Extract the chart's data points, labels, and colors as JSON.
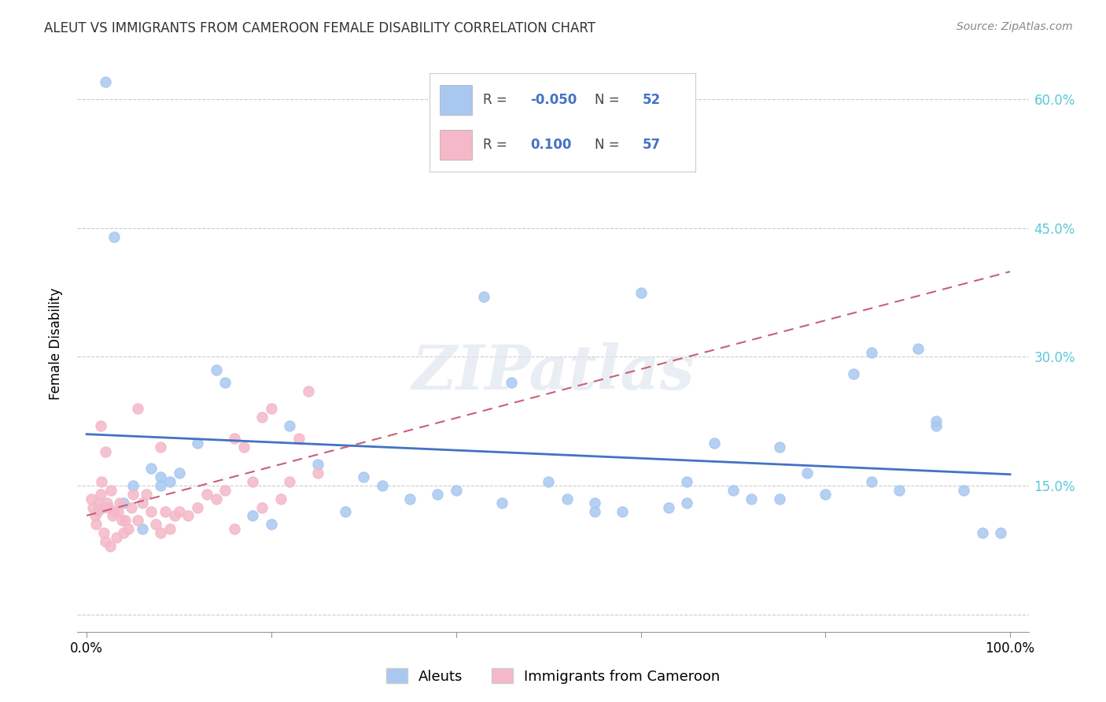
{
  "title": "ALEUT VS IMMIGRANTS FROM CAMEROON FEMALE DISABILITY CORRELATION CHART",
  "source": "Source: ZipAtlas.com",
  "ylabel": "Female Disability",
  "aleut_R": -0.05,
  "aleut_N": 52,
  "cameroon_R": 0.1,
  "cameroon_N": 57,
  "aleut_color": "#a8c8f0",
  "aleut_line_color": "#4472c4",
  "cameroon_color": "#f4b8c8",
  "cameroon_line_color": "#c8607a",
  "background_color": "#ffffff",
  "watermark": "ZIPatlas",
  "right_tick_color": "#5bc8d8",
  "aleut_scatter_x": [
    0.02,
    0.03,
    0.05,
    0.07,
    0.08,
    0.09,
    0.1,
    0.12,
    0.14,
    0.15,
    0.18,
    0.2,
    0.22,
    0.25,
    0.28,
    0.3,
    0.32,
    0.35,
    0.38,
    0.4,
    0.43,
    0.46,
    0.5,
    0.52,
    0.55,
    0.58,
    0.6,
    0.63,
    0.65,
    0.68,
    0.7,
    0.72,
    0.75,
    0.78,
    0.8,
    0.83,
    0.85,
    0.88,
    0.9,
    0.92,
    0.95,
    0.97,
    0.99,
    0.04,
    0.06,
    0.08,
    0.45,
    0.55,
    0.65,
    0.75,
    0.85,
    0.92
  ],
  "aleut_scatter_y": [
    0.62,
    0.44,
    0.15,
    0.17,
    0.16,
    0.155,
    0.165,
    0.2,
    0.285,
    0.27,
    0.115,
    0.105,
    0.22,
    0.175,
    0.12,
    0.16,
    0.15,
    0.135,
    0.14,
    0.145,
    0.37,
    0.27,
    0.155,
    0.135,
    0.13,
    0.12,
    0.375,
    0.125,
    0.13,
    0.2,
    0.145,
    0.135,
    0.135,
    0.165,
    0.14,
    0.28,
    0.155,
    0.145,
    0.31,
    0.225,
    0.145,
    0.095,
    0.095,
    0.13,
    0.1,
    0.15,
    0.13,
    0.12,
    0.155,
    0.195,
    0.305,
    0.22
  ],
  "cameroon_scatter_x": [
    0.005,
    0.007,
    0.009,
    0.01,
    0.012,
    0.013,
    0.015,
    0.016,
    0.018,
    0.019,
    0.02,
    0.022,
    0.024,
    0.026,
    0.028,
    0.03,
    0.032,
    0.034,
    0.036,
    0.038,
    0.04,
    0.042,
    0.045,
    0.048,
    0.05,
    0.055,
    0.06,
    0.065,
    0.07,
    0.075,
    0.08,
    0.085,
    0.09,
    0.095,
    0.1,
    0.11,
    0.12,
    0.13,
    0.14,
    0.15,
    0.16,
    0.17,
    0.18,
    0.19,
    0.2,
    0.21,
    0.22,
    0.23,
    0.24,
    0.25,
    0.055,
    0.08,
    0.16,
    0.19,
    0.015,
    0.02,
    0.025
  ],
  "cameroon_scatter_y": [
    0.135,
    0.125,
    0.115,
    0.105,
    0.12,
    0.13,
    0.14,
    0.155,
    0.125,
    0.095,
    0.085,
    0.13,
    0.125,
    0.145,
    0.115,
    0.12,
    0.09,
    0.12,
    0.13,
    0.11,
    0.095,
    0.11,
    0.1,
    0.125,
    0.14,
    0.11,
    0.13,
    0.14,
    0.12,
    0.105,
    0.095,
    0.12,
    0.1,
    0.115,
    0.12,
    0.115,
    0.125,
    0.14,
    0.135,
    0.145,
    0.1,
    0.195,
    0.155,
    0.125,
    0.24,
    0.135,
    0.155,
    0.205,
    0.26,
    0.165,
    0.24,
    0.195,
    0.205,
    0.23,
    0.22,
    0.19,
    0.08
  ]
}
